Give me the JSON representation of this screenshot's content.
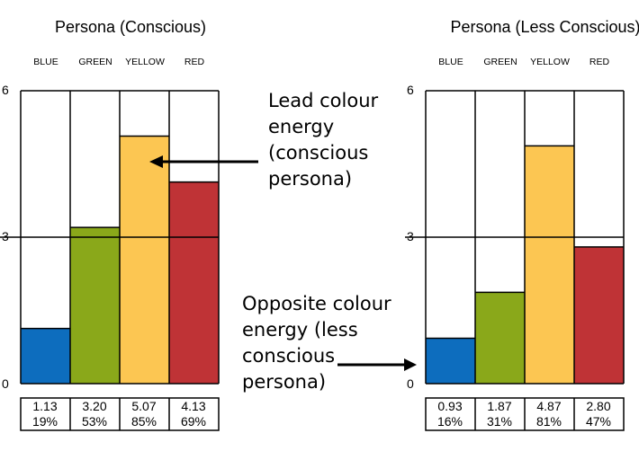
{
  "chart_data": [
    {
      "type": "bar",
      "title": "Persona (Conscious)",
      "categories": [
        "BLUE",
        "GREEN",
        "YELLOW",
        "RED"
      ],
      "values": [
        1.13,
        3.2,
        5.07,
        4.13
      ],
      "percentages": [
        "19%",
        "53%",
        "85%",
        "69%"
      ],
      "value_labels": [
        "1.13",
        "3.20",
        "5.07",
        "4.13"
      ],
      "ylim": [
        0,
        6
      ],
      "yticks": [
        "0",
        "3",
        "6"
      ],
      "colors": [
        "#0d6dbe",
        "#8aa81a",
        "#fcc652",
        "#bf3336"
      ]
    },
    {
      "type": "bar",
      "title": "Persona (Less Conscious)",
      "categories": [
        "BLUE",
        "GREEN",
        "YELLOW",
        "RED"
      ],
      "values": [
        0.93,
        1.87,
        4.87,
        2.8
      ],
      "percentages": [
        "16%",
        "31%",
        "81%",
        "47%"
      ],
      "value_labels": [
        "0.93",
        "1.87",
        "4.87",
        "2.80"
      ],
      "ylim": [
        0,
        6
      ],
      "yticks": [
        "0",
        "3",
        "6"
      ],
      "colors": [
        "#0d6dbe",
        "#8aa81a",
        "#fcc652",
        "#bf3336"
      ]
    }
  ],
  "annotations": {
    "lead": [
      "Lead colour",
      "energy",
      "(conscious",
      "persona)"
    ],
    "opposite": [
      "Opposite colour",
      "energy (less",
      "conscious",
      "persona)"
    ]
  }
}
